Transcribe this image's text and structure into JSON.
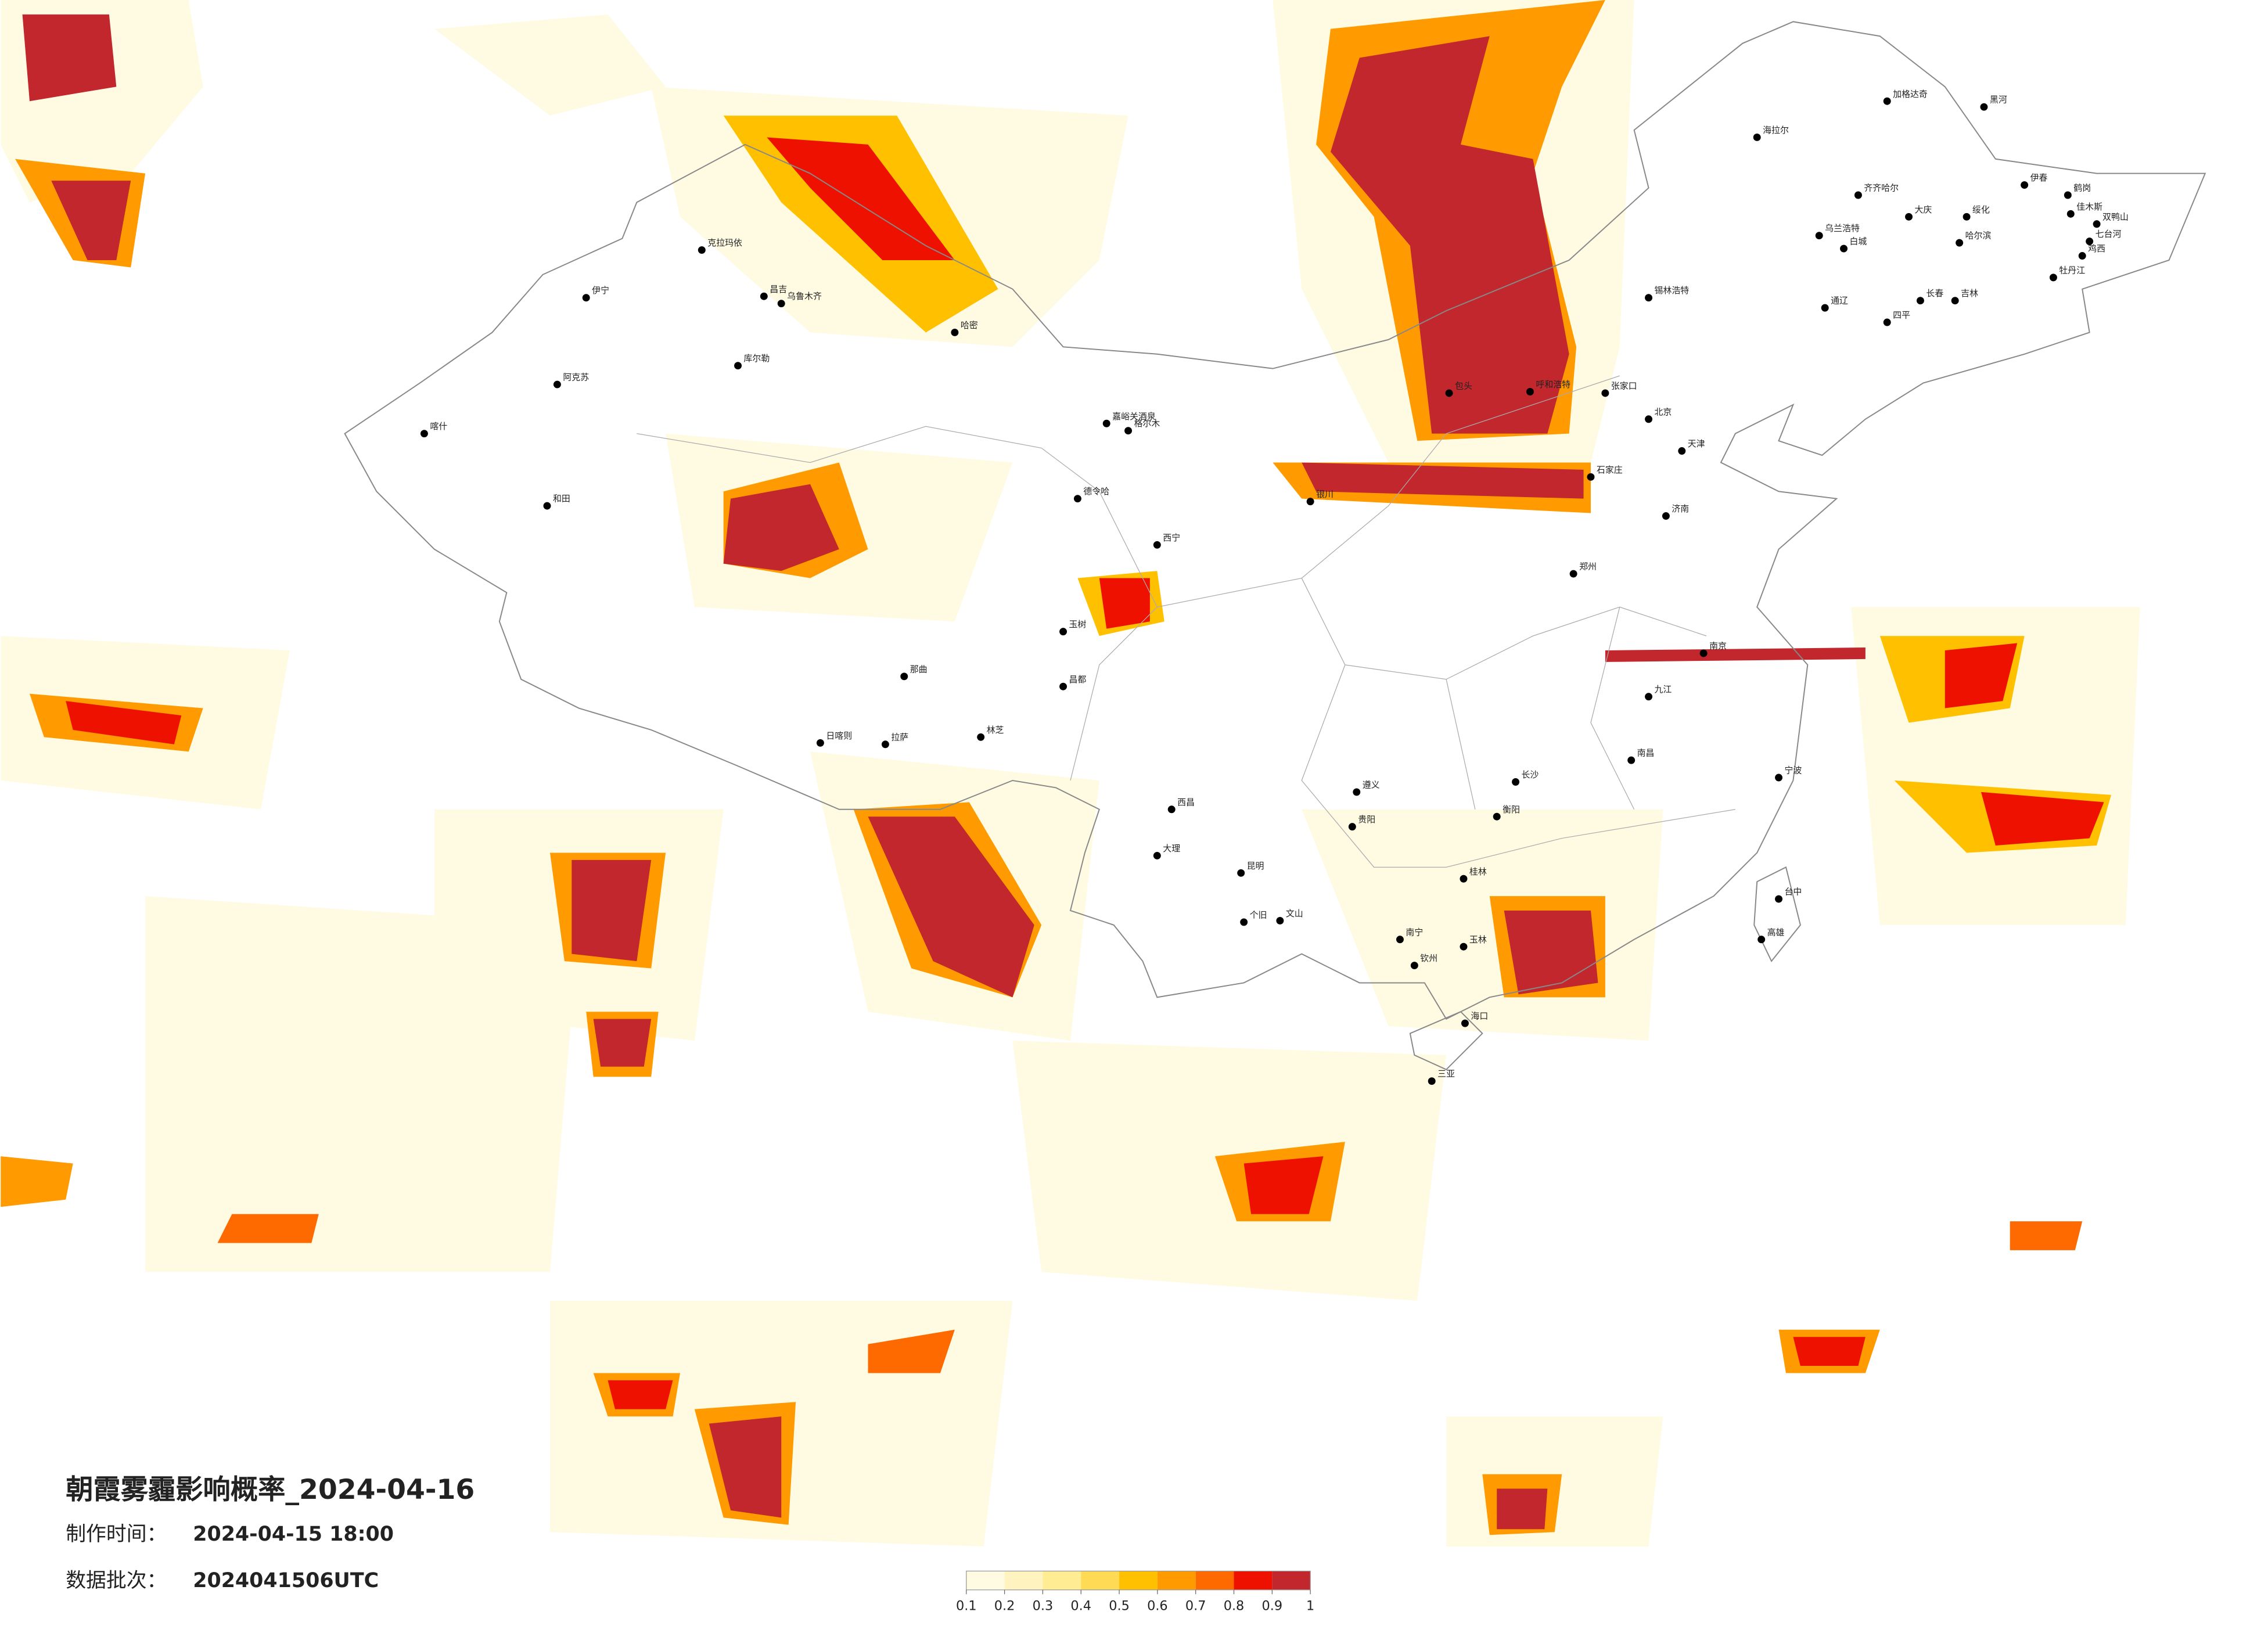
{
  "header": {
    "title": "朝霞雾霾影响概率_2024-04-16",
    "production_time_label": "制作时间：",
    "production_time": "2024-04-15 18:00",
    "batch_label": "数据批次：",
    "batch": "2024041506UTC"
  },
  "legend": {
    "ticks": [
      0.1,
      0.2,
      0.3,
      0.4,
      0.5,
      0.6,
      0.7,
      0.8,
      0.9,
      1
    ],
    "colors": [
      "#fffbe3",
      "#fff4bf",
      "#ffec93",
      "#ffdb55",
      "#ffc000",
      "#ff9a00",
      "#ff6a00",
      "#ee1100",
      "#c1272d"
    ]
  },
  "cities": [
    "海拉尔",
    "加格达奇",
    "黑河",
    "齐齐哈尔",
    "大庆",
    "绥化",
    "哈尔滨",
    "伊春",
    "鹤岗",
    "佳木斯",
    "双鸭山",
    "七台河",
    "鸡西",
    "牡丹江",
    "乌兰浩特",
    "白城",
    "通辽",
    "四平",
    "长春",
    "吉林",
    "锡林浩特",
    "张家口",
    "北京",
    "天津",
    "呼和浩特",
    "包头",
    "石家庄",
    "济南",
    "郑州",
    "南京",
    "长沙",
    "南昌",
    "台中",
    "高雄",
    "南宁",
    "海口",
    "三亚",
    "昆明",
    "贵阳",
    "西宁",
    "银川",
    "拉萨",
    "日喀则",
    "林芝",
    "昌都",
    "乌鲁木齐",
    "昌吉",
    "克拉玛依",
    "伊宁",
    "阿克苏",
    "喀什",
    "和田",
    "库尔勒",
    "哈密",
    "嘉峪关酒泉",
    "德令哈",
    "玉树",
    "那曲",
    "格尔木",
    "大理",
    "文山",
    "个旧",
    "西昌",
    "遵义",
    "桂林",
    "玉林",
    "钦州",
    "衡阳",
    "九江",
    "宁波"
  ]
}
